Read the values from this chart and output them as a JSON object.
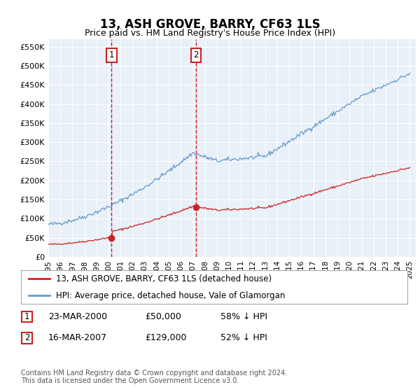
{
  "title": "13, ASH GROVE, BARRY, CF63 1LS",
  "subtitle": "Price paid vs. HM Land Registry's House Price Index (HPI)",
  "ylim": [
    0,
    570000
  ],
  "yticks": [
    0,
    50000,
    100000,
    150000,
    200000,
    250000,
    300000,
    350000,
    400000,
    450000,
    500000,
    550000
  ],
  "ytick_labels": [
    "£0",
    "£50K",
    "£100K",
    "£150K",
    "£200K",
    "£250K",
    "£300K",
    "£350K",
    "£400K",
    "£450K",
    "£500K",
    "£550K"
  ],
  "hpi_color": "#6699cc",
  "price_color": "#cc2222",
  "vline_color": "#cc2222",
  "marker1_price": 50000,
  "marker2_price": 129000,
  "marker1_year": 2000.25,
  "marker2_year": 2007.25,
  "legend_line1": "13, ASH GROVE, BARRY, CF63 1LS (detached house)",
  "legend_line2": "HPI: Average price, detached house, Vale of Glamorgan",
  "ann1_date": "23-MAR-2000",
  "ann1_price": "£50,000",
  "ann1_pct": "58% ↓ HPI",
  "ann2_date": "16-MAR-2007",
  "ann2_price": "£129,000",
  "ann2_pct": "52% ↓ HPI",
  "footer": "Contains HM Land Registry data © Crown copyright and database right 2024.\nThis data is licensed under the Open Government Licence v3.0.",
  "background_color": "#ffffff",
  "plot_bg_color": "#e8f0f8",
  "grid_color": "#ffffff"
}
